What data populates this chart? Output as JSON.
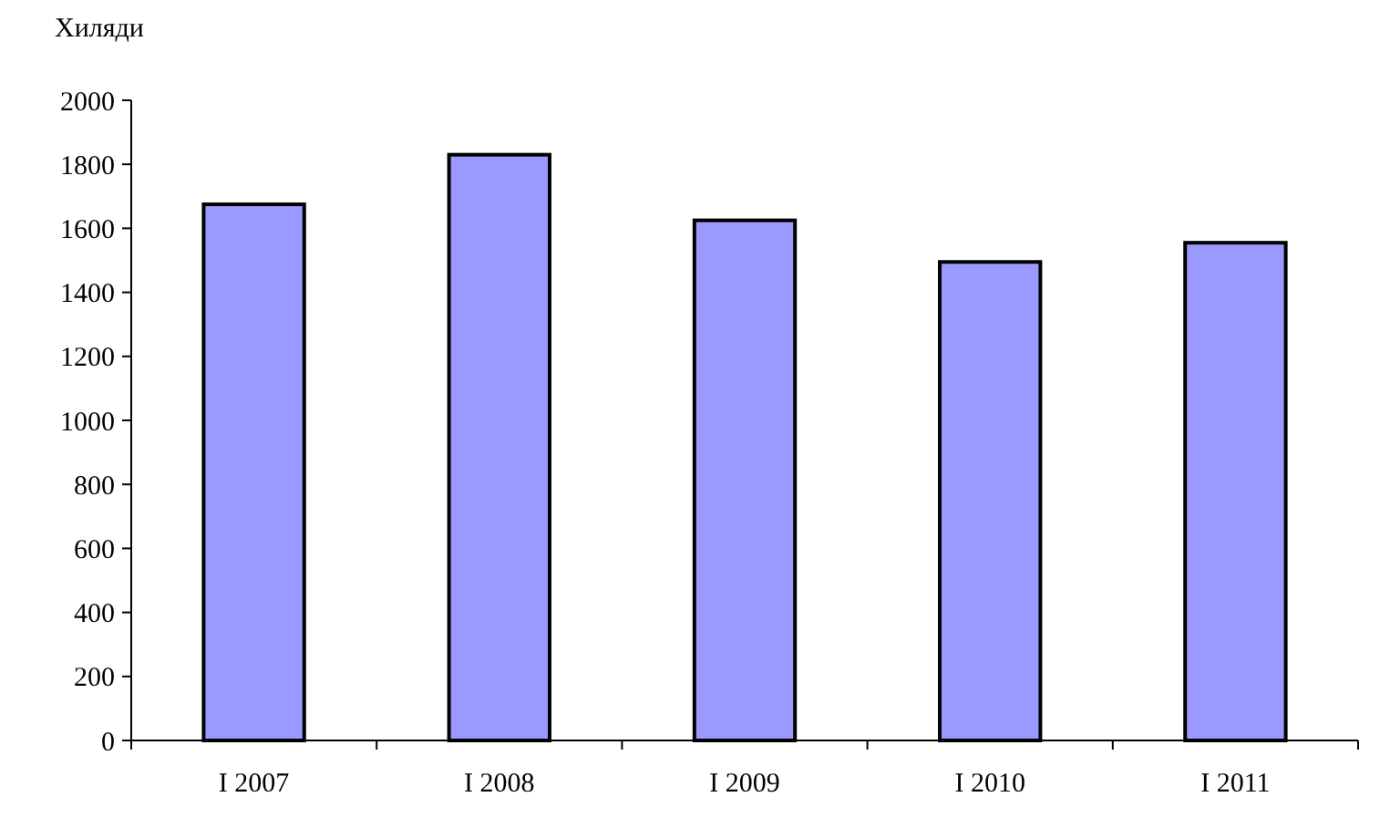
{
  "chart_data": {
    "type": "bar",
    "ylabel": "Хиляди",
    "categories": [
      "I 2007",
      "I 2008",
      "I 2009",
      "I 2010",
      "I 2011"
    ],
    "values": [
      1675,
      1830,
      1625,
      1495,
      1555
    ],
    "color": "#9999ff",
    "ylim": [
      0,
      2000
    ],
    "yticks": [
      0,
      200,
      400,
      600,
      800,
      1000,
      1200,
      1400,
      1600,
      1800,
      2000
    ],
    "grid": false
  }
}
